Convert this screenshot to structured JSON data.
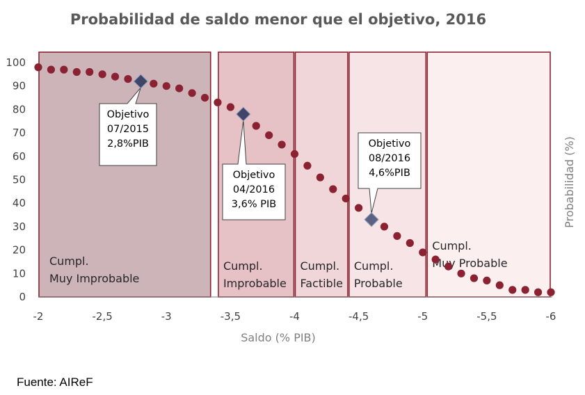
{
  "chart_data": {
    "type": "scatter",
    "title": "Probabilidad de saldo menor que el objetivo, 2016",
    "xlabel": "Saldo (% PIB)",
    "ylabel": "Probabilidad (%)",
    "xlim": [
      -2,
      -6
    ],
    "ylim": [
      0,
      100
    ],
    "x_ticks": [
      "-2",
      "-2,5",
      "-3",
      "-3,5",
      "-4",
      "-4,5",
      "-5",
      "-5,5",
      "-6"
    ],
    "y_ticks": [
      "0",
      "10",
      "20",
      "30",
      "40",
      "50",
      "60",
      "70",
      "80",
      "90",
      "100"
    ],
    "series": [
      {
        "color": "#8b2232",
        "points": [
          {
            "x": -2.0,
            "y": 98
          },
          {
            "x": -2.1,
            "y": 97
          },
          {
            "x": -2.2,
            "y": 97
          },
          {
            "x": -2.3,
            "y": 96
          },
          {
            "x": -2.4,
            "y": 96
          },
          {
            "x": -2.5,
            "y": 95
          },
          {
            "x": -2.6,
            "y": 94
          },
          {
            "x": -2.7,
            "y": 93
          },
          {
            "x": -2.8,
            "y": 92
          },
          {
            "x": -2.9,
            "y": 91
          },
          {
            "x": -3.0,
            "y": 90
          },
          {
            "x": -3.1,
            "y": 89
          },
          {
            "x": -3.2,
            "y": 87
          },
          {
            "x": -3.3,
            "y": 85
          },
          {
            "x": -3.4,
            "y": 83
          },
          {
            "x": -3.5,
            "y": 81
          },
          {
            "x": -3.6,
            "y": 78
          },
          {
            "x": -3.7,
            "y": 73
          },
          {
            "x": -3.8,
            "y": 69
          },
          {
            "x": -3.9,
            "y": 65
          },
          {
            "x": -4.0,
            "y": 61
          },
          {
            "x": -4.1,
            "y": 56
          },
          {
            "x": -4.2,
            "y": 51
          },
          {
            "x": -4.3,
            "y": 46
          },
          {
            "x": -4.4,
            "y": 42
          },
          {
            "x": -4.5,
            "y": 38
          },
          {
            "x": -4.6,
            "y": 33
          },
          {
            "x": -4.7,
            "y": 30
          },
          {
            "x": -4.8,
            "y": 26
          },
          {
            "x": -4.9,
            "y": 23
          },
          {
            "x": -5.0,
            "y": 19
          },
          {
            "x": -5.1,
            "y": 16
          },
          {
            "x": -5.2,
            "y": 13
          },
          {
            "x": -5.3,
            "y": 10
          },
          {
            "x": -5.4,
            "y": 8
          },
          {
            "x": -5.5,
            "y": 7
          },
          {
            "x": -5.6,
            "y": 5
          },
          {
            "x": -5.7,
            "y": 3
          },
          {
            "x": -5.8,
            "y": 3
          },
          {
            "x": -5.9,
            "y": 2
          },
          {
            "x": -6.0,
            "y": 2
          }
        ]
      }
    ],
    "highlighted_points": [
      {
        "x": -2.8,
        "y": 92,
        "color": "#3e4568",
        "label": [
          "Objetivo",
          "07/2015",
          "2,8%PIB"
        ]
      },
      {
        "x": -3.6,
        "y": 78,
        "color": "#3e4568",
        "label": [
          "Objetivo",
          "04/2016",
          "3,6% PIB"
        ]
      },
      {
        "x": -4.6,
        "y": 33,
        "color": "#5a6285",
        "label": [
          "Objetivo",
          "08/2016",
          "4,6%PIB"
        ]
      }
    ],
    "zones": [
      {
        "from": -2.0,
        "to": -3.35,
        "fill": "#cdb4b8",
        "label": [
          "Cumpl.",
          "Muy Improbable"
        ]
      },
      {
        "from": -3.4,
        "to": -4.0,
        "fill": "#e6c1c5",
        "label": [
          "Cumpl.",
          "Improbable"
        ]
      },
      {
        "from": -4.0,
        "to": -4.42,
        "fill": "#f0d6d9",
        "label": [
          "Cumpl.",
          "Factible"
        ]
      },
      {
        "from": -4.42,
        "to": -5.03,
        "fill": "#f7e4e6",
        "label": [
          "Cumpl.",
          "Probable"
        ]
      },
      {
        "from": -5.03,
        "to": -6.0,
        "fill": "#fbeff0",
        "label": [
          "Cumpl.",
          "Muy Probable"
        ]
      }
    ],
    "grid": false
  },
  "source": "Fuente: AIReF"
}
